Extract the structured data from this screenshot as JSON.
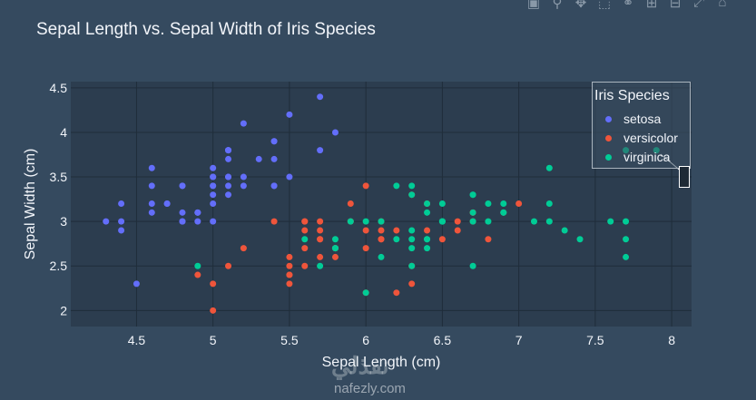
{
  "chart_data": {
    "type": "scatter",
    "title": "Sepal Length vs. Sepal Width of Iris Species",
    "xlabel": "Sepal Length (cm)",
    "ylabel": "Sepal Width (cm)",
    "xlim": [
      4.07,
      8.13
    ],
    "ylim": [
      1.82,
      4.57
    ],
    "xticks": [
      "4.5",
      "5",
      "5.5",
      "6",
      "6.5",
      "7",
      "7.5",
      "8"
    ],
    "yticks": [
      "2",
      "2.5",
      "3",
      "3.5",
      "4",
      "4.5"
    ],
    "grid": true,
    "legend": {
      "title": "Iris Species",
      "placement": "top-right"
    },
    "series": [
      {
        "name": "setosa",
        "color": "#636efa",
        "points": [
          [
            5.1,
            3.5
          ],
          [
            4.9,
            3.0
          ],
          [
            4.7,
            3.2
          ],
          [
            4.6,
            3.1
          ],
          [
            5.0,
            3.6
          ],
          [
            5.4,
            3.9
          ],
          [
            4.6,
            3.4
          ],
          [
            5.0,
            3.4
          ],
          [
            4.4,
            2.9
          ],
          [
            4.9,
            3.1
          ],
          [
            5.4,
            3.7
          ],
          [
            4.8,
            3.4
          ],
          [
            4.8,
            3.0
          ],
          [
            4.3,
            3.0
          ],
          [
            5.8,
            4.0
          ],
          [
            5.7,
            4.4
          ],
          [
            5.4,
            3.9
          ],
          [
            5.1,
            3.5
          ],
          [
            5.7,
            3.8
          ],
          [
            5.1,
            3.8
          ],
          [
            5.4,
            3.4
          ],
          [
            5.1,
            3.7
          ],
          [
            4.6,
            3.6
          ],
          [
            5.1,
            3.3
          ],
          [
            4.8,
            3.4
          ],
          [
            5.0,
            3.0
          ],
          [
            5.0,
            3.4
          ],
          [
            5.2,
            3.5
          ],
          [
            5.2,
            3.4
          ],
          [
            4.7,
            3.2
          ],
          [
            4.8,
            3.1
          ],
          [
            5.4,
            3.4
          ],
          [
            5.2,
            4.1
          ],
          [
            5.5,
            4.2
          ],
          [
            4.9,
            3.1
          ],
          [
            5.0,
            3.2
          ],
          [
            5.5,
            3.5
          ],
          [
            4.9,
            3.1
          ],
          [
            4.4,
            3.0
          ],
          [
            5.1,
            3.4
          ],
          [
            5.0,
            3.5
          ],
          [
            4.5,
            2.3
          ],
          [
            4.4,
            3.2
          ],
          [
            5.0,
            3.5
          ],
          [
            5.1,
            3.8
          ],
          [
            4.8,
            3.0
          ],
          [
            5.1,
            3.8
          ],
          [
            4.6,
            3.2
          ],
          [
            5.3,
            3.7
          ],
          [
            5.0,
            3.3
          ]
        ]
      },
      {
        "name": "versicolor",
        "color": "#ef553b",
        "points": [
          [
            7.0,
            3.2
          ],
          [
            6.4,
            3.2
          ],
          [
            6.9,
            3.1
          ],
          [
            5.5,
            2.3
          ],
          [
            6.5,
            2.8
          ],
          [
            5.7,
            2.8
          ],
          [
            6.3,
            3.3
          ],
          [
            4.9,
            2.4
          ],
          [
            6.6,
            2.9
          ],
          [
            5.2,
            2.7
          ],
          [
            5.0,
            2.0
          ],
          [
            5.9,
            3.0
          ],
          [
            6.0,
            2.2
          ],
          [
            6.1,
            2.9
          ],
          [
            5.6,
            2.9
          ],
          [
            6.7,
            3.1
          ],
          [
            5.6,
            3.0
          ],
          [
            5.8,
            2.7
          ],
          [
            6.2,
            2.2
          ],
          [
            5.6,
            2.5
          ],
          [
            5.9,
            3.2
          ],
          [
            6.1,
            2.8
          ],
          [
            6.3,
            2.5
          ],
          [
            6.1,
            2.8
          ],
          [
            6.4,
            2.9
          ],
          [
            6.6,
            3.0
          ],
          [
            6.8,
            2.8
          ],
          [
            6.7,
            3.0
          ],
          [
            6.0,
            2.9
          ],
          [
            5.7,
            2.6
          ],
          [
            5.5,
            2.4
          ],
          [
            5.5,
            2.4
          ],
          [
            5.8,
            2.7
          ],
          [
            6.0,
            2.7
          ],
          [
            5.4,
            3.0
          ],
          [
            6.0,
            3.4
          ],
          [
            6.7,
            3.1
          ],
          [
            6.3,
            2.3
          ],
          [
            5.6,
            3.0
          ],
          [
            5.5,
            2.5
          ],
          [
            5.5,
            2.6
          ],
          [
            6.1,
            3.0
          ],
          [
            5.8,
            2.6
          ],
          [
            5.0,
            2.3
          ],
          [
            5.6,
            2.7
          ],
          [
            5.7,
            3.0
          ],
          [
            5.7,
            2.9
          ],
          [
            6.2,
            2.9
          ],
          [
            5.1,
            2.5
          ],
          [
            5.7,
            2.8
          ]
        ]
      },
      {
        "name": "virginica",
        "color": "#00cc96",
        "points": [
          [
            6.3,
            3.3
          ],
          [
            5.8,
            2.7
          ],
          [
            7.1,
            3.0
          ],
          [
            6.3,
            2.9
          ],
          [
            6.5,
            3.0
          ],
          [
            7.6,
            3.0
          ],
          [
            4.9,
            2.5
          ],
          [
            7.3,
            2.9
          ],
          [
            6.7,
            2.5
          ],
          [
            7.2,
            3.6
          ],
          [
            6.5,
            3.2
          ],
          [
            6.4,
            2.7
          ],
          [
            6.8,
            3.0
          ],
          [
            5.7,
            2.5
          ],
          [
            5.8,
            2.8
          ],
          [
            6.4,
            3.2
          ],
          [
            6.5,
            3.0
          ],
          [
            7.7,
            3.8
          ],
          [
            7.7,
            2.6
          ],
          [
            6.0,
            2.2
          ],
          [
            6.9,
            3.2
          ],
          [
            5.6,
            2.8
          ],
          [
            7.7,
            2.8
          ],
          [
            6.3,
            2.7
          ],
          [
            6.7,
            3.3
          ],
          [
            7.2,
            3.2
          ],
          [
            6.2,
            2.8
          ],
          [
            6.1,
            3.0
          ],
          [
            6.4,
            2.8
          ],
          [
            7.2,
            3.0
          ],
          [
            7.4,
            2.8
          ],
          [
            7.9,
            3.8
          ],
          [
            6.4,
            2.8
          ],
          [
            6.3,
            2.8
          ],
          [
            6.1,
            2.6
          ],
          [
            7.7,
            3.0
          ],
          [
            6.3,
            3.4
          ],
          [
            6.4,
            3.1
          ],
          [
            6.0,
            3.0
          ],
          [
            6.9,
            3.1
          ],
          [
            6.7,
            3.1
          ],
          [
            6.9,
            3.1
          ],
          [
            5.8,
            2.7
          ],
          [
            6.8,
            3.2
          ],
          [
            6.7,
            3.3
          ],
          [
            6.7,
            3.0
          ],
          [
            6.3,
            2.5
          ],
          [
            6.5,
            3.0
          ],
          [
            6.2,
            3.4
          ],
          [
            5.9,
            3.0
          ]
        ]
      }
    ]
  },
  "watermark": "nafezly.com"
}
